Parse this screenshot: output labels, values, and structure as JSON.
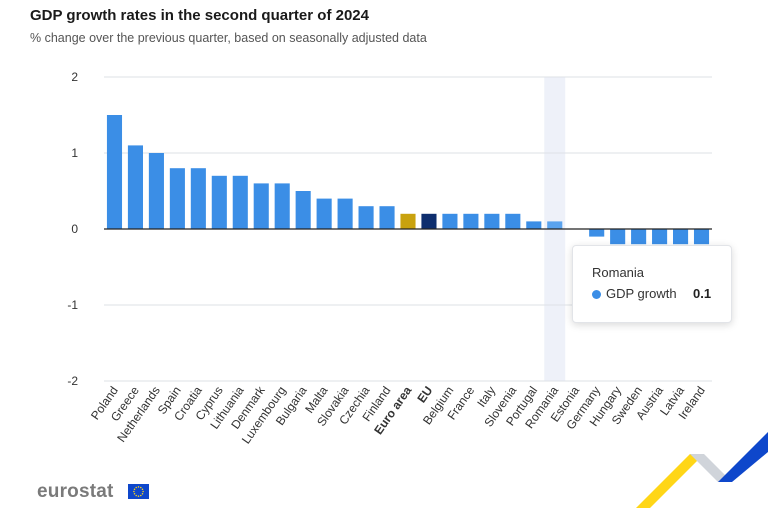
{
  "chart_data": {
    "type": "bar",
    "title": "GDP growth rates in the second quarter of 2024",
    "subtitle": "% change over the previous quarter, based on seasonally adjusted data",
    "categories": [
      "Poland",
      "Greece",
      "Netherlands",
      "Spain",
      "Croatia",
      "Cyprus",
      "Lithuania",
      "Denmark",
      "Luxembourg",
      "Bulgaria",
      "Malta",
      "Slovakia",
      "Czechia",
      "Finland",
      "Euro area",
      "EU",
      "Belgium",
      "France",
      "Italy",
      "Slovenia",
      "Portugal",
      "Romania",
      "Estonia",
      "Germany",
      "Hungary",
      "Sweden",
      "Austria",
      "Latvia",
      "Ireland"
    ],
    "bold_categories": [
      "Euro area",
      "EU"
    ],
    "series": [
      {
        "name": "GDP growth",
        "values": [
          1.5,
          1.1,
          1.0,
          0.8,
          0.8,
          0.7,
          0.7,
          0.6,
          0.6,
          0.5,
          0.4,
          0.4,
          0.3,
          0.3,
          0.2,
          0.2,
          0.2,
          0.2,
          0.2,
          0.2,
          0.1,
          0.1,
          0.0,
          -0.1,
          -0.2,
          -0.2,
          -0.2,
          -0.2,
          -0.2
        ]
      }
    ],
    "ylim": [
      -2,
      2
    ],
    "yticks": [
      "2",
      "1",
      "0",
      "-1",
      "-2"
    ],
    "grid": true,
    "highlighted_category": "Romania",
    "colors": {
      "default": "#3b8ee6",
      "Euro area": "#c9a20e",
      "EU": "#0e2e6e",
      "highlight": "#5aa3ee",
      "highlight_band": "#eef1f9",
      "grid": "#dde1e6",
      "zero_line": "#222222"
    }
  },
  "tooltip": {
    "title": "Romania",
    "series_label": "GDP growth",
    "value": "0.1",
    "dot_color": "#3b8ee6"
  },
  "branding": {
    "logo_text": "eurostat",
    "flag_icon": "eu-flag-icon",
    "flag_color": "#0e47cb",
    "star_color": "#ffd617"
  }
}
